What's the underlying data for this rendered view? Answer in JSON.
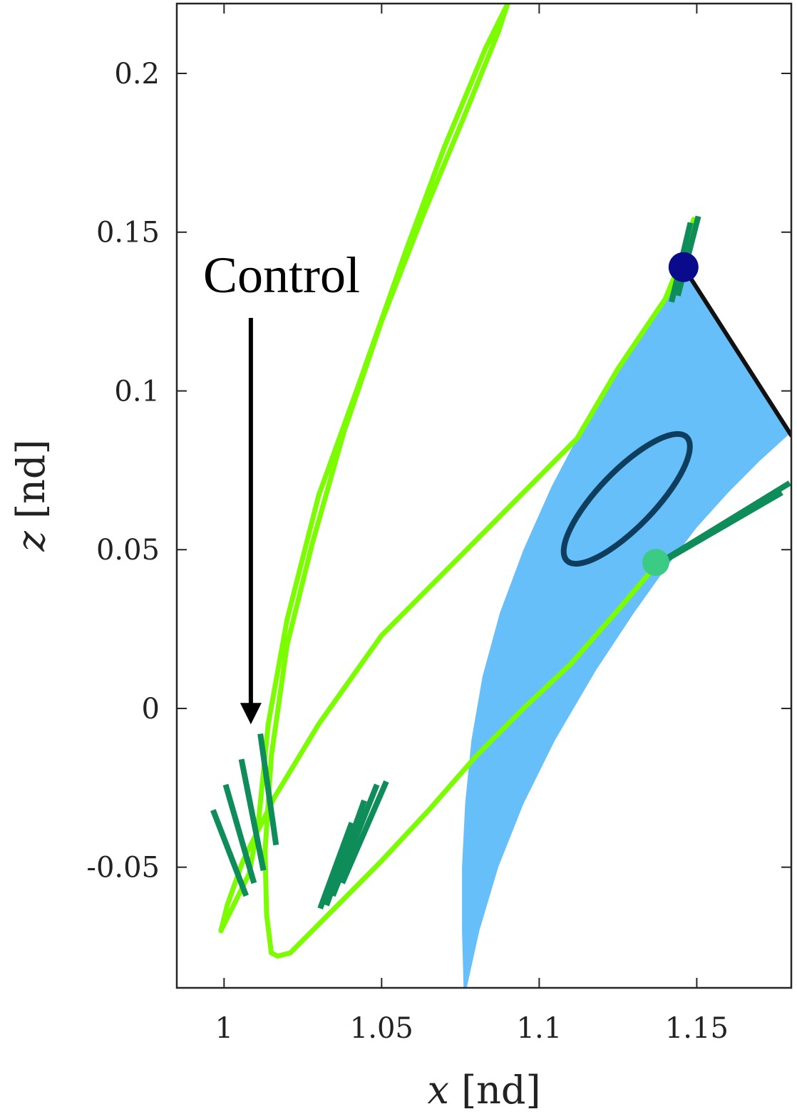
{
  "chart_data": {
    "type": "line",
    "xlabel": {
      "var": "x",
      "unit": " [nd]"
    },
    "ylabel": {
      "var": "z",
      "unit": " [nd]"
    },
    "xlim": [
      0.985,
      1.18
    ],
    "ylim": [
      -0.088,
      0.222
    ],
    "xticks": [
      {
        "value": 1,
        "label": "1"
      },
      {
        "value": 1.05,
        "label": "1.05"
      },
      {
        "value": 1.1,
        "label": "1.1"
      },
      {
        "value": 1.15,
        "label": "1.15"
      }
    ],
    "yticks": [
      {
        "value": -0.05,
        "label": "-0.05"
      },
      {
        "value": 0,
        "label": "0"
      },
      {
        "value": 0.05,
        "label": "0.05"
      },
      {
        "value": 0.1,
        "label": "0.1"
      },
      {
        "value": 0.15,
        "label": "0.15"
      },
      {
        "value": 0.2,
        "label": "0.2"
      }
    ],
    "grid": false,
    "colors": {
      "trajectory": "#7CFC00",
      "control": "#0E8C5A",
      "manifold": "#66BFF8",
      "orbit": "#0F3D5E",
      "departure": "#0A0A8C",
      "arrival": "#3CCB85",
      "black_segment": "#111111"
    },
    "manifold_boundary": [
      [
        1.076,
        -0.088
      ],
      [
        1.0755,
        -0.07
      ],
      [
        1.0755,
        -0.05
      ],
      [
        1.0765,
        -0.03
      ],
      [
        1.0785,
        -0.01
      ],
      [
        1.082,
        0.01
      ],
      [
        1.0875,
        0.03
      ],
      [
        1.095,
        0.05
      ],
      [
        1.104,
        0.07
      ],
      [
        1.113,
        0.087
      ],
      [
        1.119,
        0.097
      ],
      [
        1.125,
        0.107
      ],
      [
        1.131,
        0.117
      ],
      [
        1.137,
        0.126
      ],
      [
        1.142,
        0.133
      ],
      [
        1.1458,
        0.138
      ],
      [
        1.18,
        0.087
      ],
      [
        1.17,
        0.078
      ],
      [
        1.16,
        0.068
      ],
      [
        1.15,
        0.057
      ],
      [
        1.14,
        0.044
      ],
      [
        1.13,
        0.03
      ],
      [
        1.118,
        0.012
      ],
      [
        1.105,
        -0.01
      ],
      [
        1.095,
        -0.03
      ],
      [
        1.087,
        -0.05
      ],
      [
        1.081,
        -0.07
      ],
      [
        1.077,
        -0.088
      ]
    ],
    "periodic_orbit": {
      "cx": 1.1278,
      "cz": 0.066,
      "rx": 0.026,
      "rz": 0.0085,
      "angle_deg": -42
    },
    "departure_point": [
      1.1458,
      0.139
    ],
    "arrival_point": [
      1.137,
      0.046
    ],
    "black_segment": [
      [
        1.1458,
        0.139
      ],
      [
        1.18,
        0.086
      ]
    ],
    "trajectory": [
      [
        1.149,
        0.154
      ],
      [
        1.145,
        0.141
      ],
      [
        1.14,
        0.129
      ],
      [
        1.125,
        0.107
      ],
      [
        1.112,
        0.085
      ],
      [
        1.08,
        0.053
      ],
      [
        1.05,
        0.023
      ],
      [
        1.03,
        -0.005
      ],
      [
        1.016,
        -0.028
      ],
      [
        1.006,
        -0.048
      ],
      [
        1.001,
        -0.062
      ],
      [
        0.999,
        -0.07
      ],
      [
        1.003,
        -0.062
      ],
      [
        1.008,
        -0.052
      ],
      [
        1.011,
        -0.035
      ],
      [
        1.014,
        -0.005
      ],
      [
        1.02,
        0.028
      ],
      [
        1.03,
        0.067
      ],
      [
        1.042,
        0.1
      ],
      [
        1.058,
        0.145
      ],
      [
        1.07,
        0.177
      ],
      [
        1.083,
        0.208
      ],
      [
        1.09,
        0.222
      ],
      [
        1.087,
        0.213
      ],
      [
        1.076,
        0.186
      ],
      [
        1.063,
        0.155
      ],
      [
        1.05,
        0.122
      ],
      [
        1.038,
        0.087
      ],
      [
        1.028,
        0.052
      ],
      [
        1.02,
        0.02
      ],
      [
        1.015,
        -0.015
      ],
      [
        1.013,
        -0.045
      ],
      [
        1.0135,
        -0.065
      ],
      [
        1.015,
        -0.077
      ],
      [
        1.017,
        -0.078
      ],
      [
        1.021,
        -0.077
      ],
      [
        1.028,
        -0.07
      ],
      [
        1.038,
        -0.06
      ],
      [
        1.05,
        -0.048
      ],
      [
        1.065,
        -0.032
      ],
      [
        1.08,
        -0.015
      ],
      [
        1.095,
        0.0
      ],
      [
        1.11,
        0.014
      ],
      [
        1.125,
        0.031
      ],
      [
        1.137,
        0.045
      ]
    ],
    "control_segments": [
      [
        [
          0.9965,
          -0.032
        ],
        [
          1.007,
          -0.059
        ]
      ],
      [
        [
          1.0005,
          -0.024
        ],
        [
          1.0095,
          -0.055
        ]
      ],
      [
        [
          1.0055,
          -0.016
        ],
        [
          1.0125,
          -0.051
        ]
      ],
      [
        [
          1.0115,
          -0.008
        ],
        [
          1.0165,
          -0.043
        ]
      ],
      [
        [
          1.0305,
          -0.063
        ],
        [
          1.0405,
          -0.036
        ]
      ],
      [
        [
          1.0325,
          -0.062
        ],
        [
          1.0445,
          -0.029
        ]
      ],
      [
        [
          1.0345,
          -0.059
        ],
        [
          1.0485,
          -0.024
        ]
      ],
      [
        [
          1.0375,
          -0.055
        ],
        [
          1.0515,
          -0.023
        ]
      ],
      [
        [
          1.137,
          0.045
        ],
        [
          1.177,
          0.068
        ]
      ],
      [
        [
          1.14,
          0.047
        ],
        [
          1.1795,
          0.071
        ]
      ],
      [
        [
          1.142,
          0.128
        ],
        [
          1.148,
          0.153
        ]
      ],
      [
        [
          1.144,
          0.13
        ],
        [
          1.1505,
          0.155
        ]
      ]
    ],
    "annotation": {
      "text": "Control",
      "arrow_from": [
        1.0085,
        0.123
      ],
      "arrow_to": [
        1.0085,
        -0.005
      ]
    }
  }
}
